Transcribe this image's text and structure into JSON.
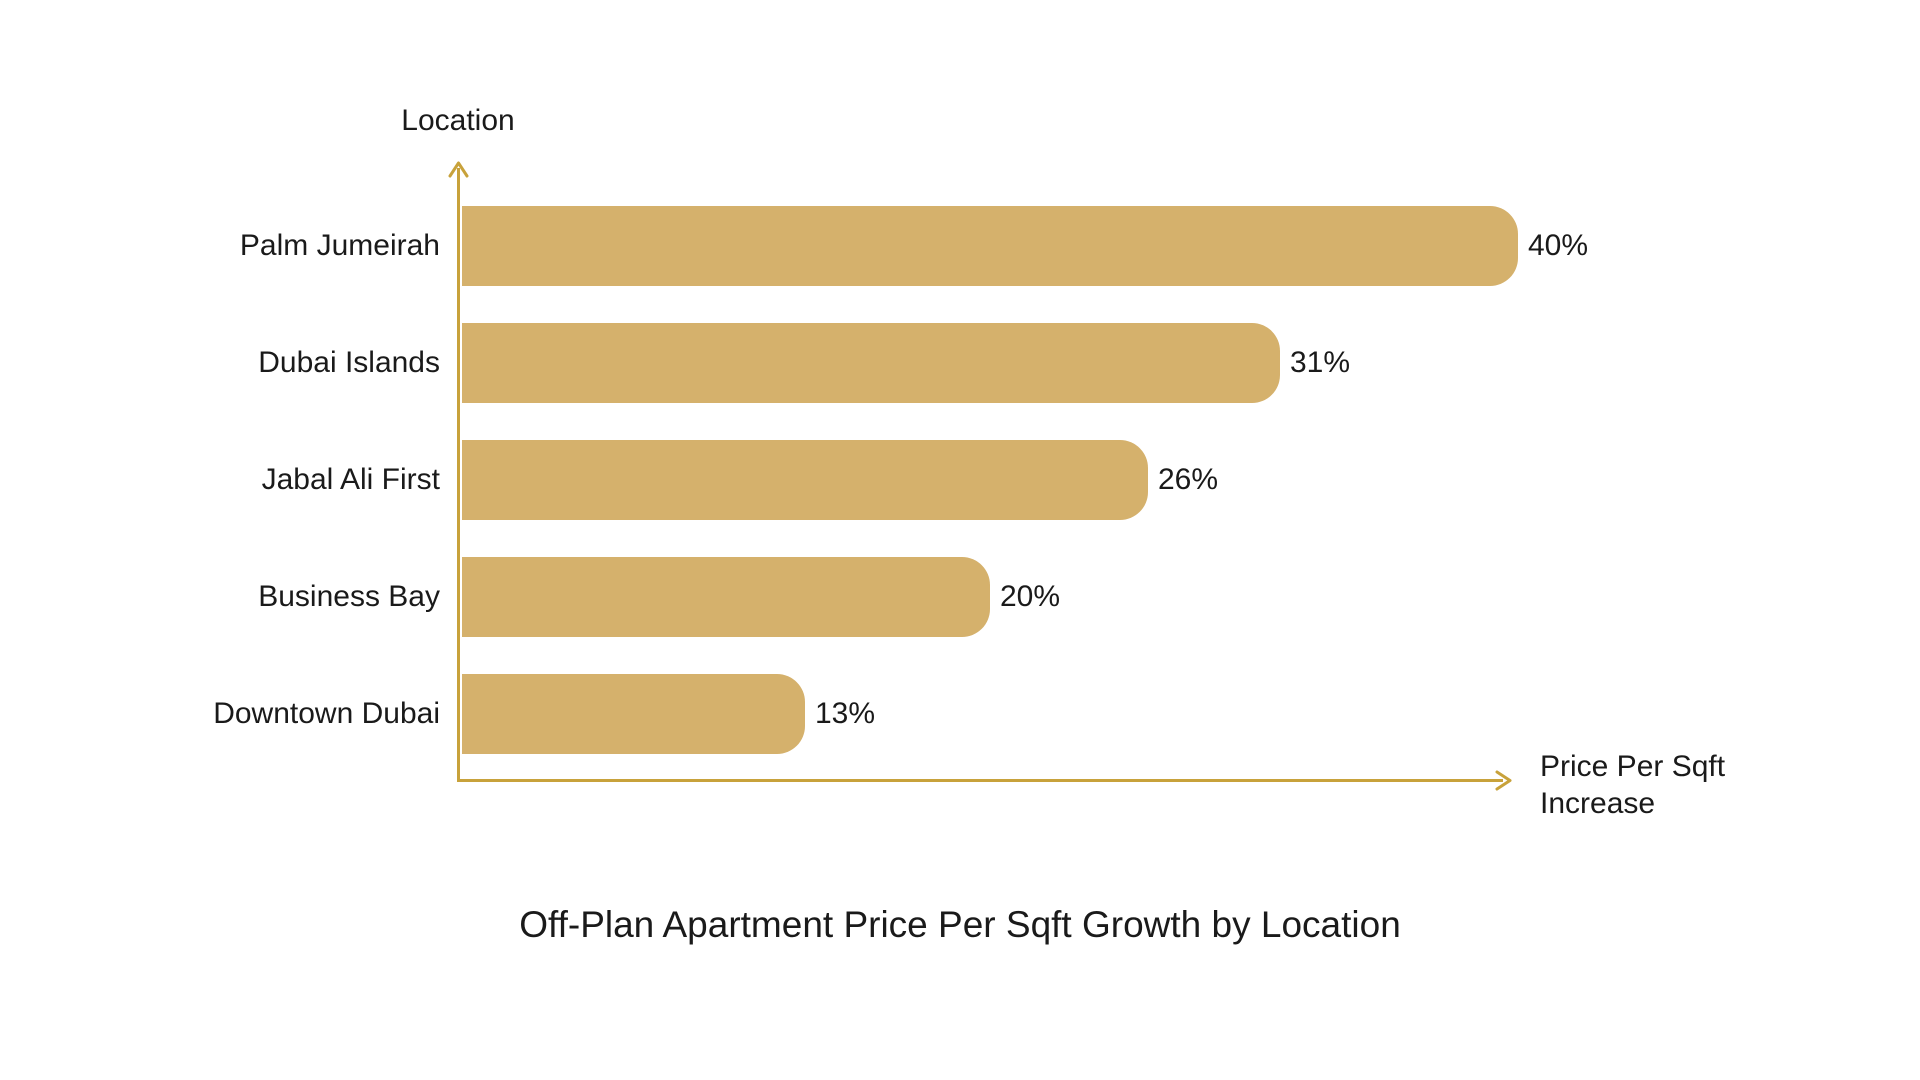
{
  "chart": {
    "title": "Off-Plan Apartment Price Per Sqft Growth by Location",
    "y_axis_label": "Location",
    "x_axis_label_line1": "Price Per Sqft",
    "x_axis_label_line2": "Increase",
    "colors": {
      "bar_fill": "#D5B16C",
      "axis_line": "#C8A23B",
      "text": "#1A1A1A",
      "background": "#FFFFFF"
    }
  },
  "chart_data": {
    "type": "bar",
    "orientation": "horizontal",
    "title": "Off-Plan Apartment Price Per Sqft Growth by Location",
    "xlabel": "Price Per Sqft Increase",
    "ylabel": "Location",
    "categories": [
      "Palm Jumeirah",
      "Dubai Islands",
      "Jabal Ali First",
      "Business Bay",
      "Downtown Dubai"
    ],
    "values": [
      40,
      31,
      26,
      20,
      13
    ],
    "value_labels": [
      "40%",
      "31%",
      "26%",
      "20%",
      "13%"
    ],
    "xlim": [
      0,
      40
    ],
    "grid": false,
    "legend": false
  }
}
